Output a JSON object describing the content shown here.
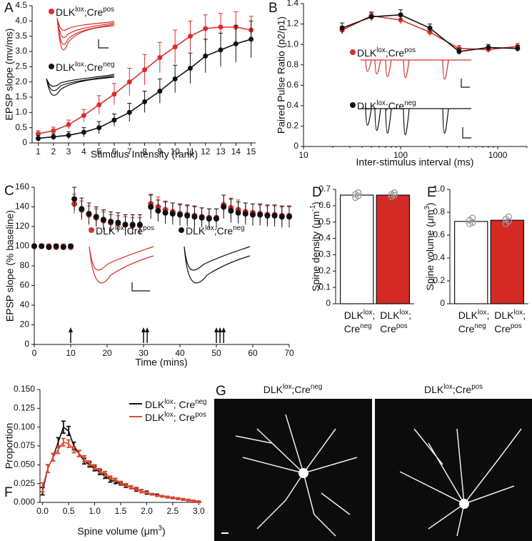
{
  "chart_data": [
    {
      "type": "line",
      "label": "A",
      "ylabel": "EPSP slope (mv/ms)",
      "xlabel": "Stimulus Intensity (rank)",
      "x": [
        1,
        2,
        3,
        4,
        5,
        6,
        7,
        8,
        9,
        10,
        11,
        12,
        13,
        14,
        15
      ],
      "xlim": [
        0.6,
        15.3
      ],
      "xticks": [
        1,
        2,
        3,
        4,
        5,
        6,
        7,
        8,
        9,
        10,
        11,
        12,
        13,
        14,
        15
      ],
      "ylim": [
        0,
        4.5
      ],
      "yticks": [
        0,
        0.5,
        {
          "value": 1,
          "label": "1.0"
        },
        1.5,
        {
          "value": 2,
          "label": "2.0"
        },
        2.5,
        {
          "value": 3,
          "label": "3.0"
        },
        3.5,
        {
          "value": 4,
          "label": "4.0"
        },
        4.5
      ],
      "series": [
        {
          "name": [
            "DLK",
            "lox",
            ";Cre",
            "pos"
          ],
          "color": "#d8302b",
          "values": [
            0.3,
            0.4,
            0.6,
            0.9,
            1.25,
            1.6,
            2.0,
            2.4,
            2.8,
            3.15,
            3.5,
            3.75,
            3.8,
            3.8,
            3.7
          ],
          "errors": [
            0.1,
            0.12,
            0.15,
            0.2,
            0.3,
            0.35,
            0.45,
            0.5,
            0.5,
            0.55,
            0.5,
            0.45,
            0.45,
            0.5,
            0.45
          ]
        },
        {
          "name": [
            "DLK",
            "lox",
            ";Cre",
            "neg"
          ],
          "color": "#111111",
          "values": [
            0.15,
            0.2,
            0.25,
            0.35,
            0.5,
            0.75,
            1.0,
            1.35,
            1.7,
            2.1,
            2.45,
            2.85,
            3.05,
            3.25,
            3.4
          ],
          "errors": [
            0.1,
            0.1,
            0.12,
            0.15,
            0.2,
            0.2,
            0.3,
            0.35,
            0.4,
            0.45,
            0.5,
            0.55,
            0.55,
            0.6,
            0.6
          ]
        }
      ]
    },
    {
      "type": "line",
      "label": "B",
      "ylabel": "Paired Pulse Ratio (p2/p1)",
      "xlabel": "Inter-stimulus interval (ms)",
      "log_x": true,
      "x": [
        25,
        50,
        100,
        200,
        400,
        800,
        1600
      ],
      "xlim": [
        10,
        2000
      ],
      "xticks": [
        10,
        100,
        1000
      ],
      "ylim": [
        0,
        1.4
      ],
      "yticks": [
        0,
        0.2,
        0.4,
        0.6,
        0.8,
        {
          "value": 1,
          "label": "1.0"
        },
        1.2,
        1.4
      ],
      "series": [
        {
          "name": [
            "DLK",
            "lox",
            ";Cre",
            "pos"
          ],
          "color": "#d8302b",
          "values": [
            1.14,
            1.28,
            1.24,
            1.12,
            0.96,
            0.95,
            0.98
          ],
          "errors": [
            0.04,
            0.04,
            0.04,
            0.04,
            0.03,
            0.03,
            0.03
          ]
        },
        {
          "name": [
            "DLK",
            "lox",
            ";Cre",
            "neg"
          ],
          "color": "#111111",
          "values": [
            1.16,
            1.27,
            1.29,
            1.16,
            0.93,
            0.97,
            0.96
          ],
          "errors": [
            0.05,
            0.04,
            0.05,
            0.04,
            0.03,
            0.03,
            0.03
          ]
        }
      ]
    },
    {
      "type": "scatter",
      "label": "C",
      "ylabel": "EPSP slope (% baseline)",
      "xlabel": "Time (mins)",
      "x": [
        0,
        2,
        4,
        6,
        8,
        10,
        11,
        13,
        15,
        17,
        19,
        21,
        23,
        25,
        27,
        29,
        32,
        34,
        36,
        38,
        40,
        42,
        44,
        46,
        48,
        50,
        52,
        54,
        56,
        58,
        60,
        62,
        64,
        66,
        68,
        70
      ],
      "xlim": [
        0,
        70
      ],
      "xticks": [
        0,
        10,
        20,
        30,
        40,
        50,
        60,
        70
      ],
      "ylim": [
        0,
        160
      ],
      "yticks": [
        0,
        20,
        40,
        60,
        80,
        100,
        120,
        140,
        160
      ],
      "stimulus_times": [
        10,
        30,
        31,
        50,
        51,
        52
      ],
      "series": [
        {
          "name": [
            "DLK",
            "lox",
            ";Cre",
            "pos"
          ],
          "color": "#d8302b",
          "values": [
            100,
            100,
            100,
            99,
            100,
            99,
            143,
            137,
            132,
            129,
            126,
            124,
            123,
            122,
            121,
            121,
            143,
            140,
            137,
            135,
            133,
            132,
            131,
            130,
            129,
            129,
            142,
            139,
            137,
            135,
            134,
            133,
            132,
            132,
            131,
            131
          ],
          "errors": [
            2,
            2,
            2,
            2,
            2,
            2,
            10,
            9,
            9,
            9,
            9,
            8,
            8,
            8,
            8,
            8,
            10,
            10,
            9,
            9,
            9,
            9,
            9,
            9,
            9,
            9,
            10,
            10,
            10,
            9,
            9,
            9,
            9,
            9,
            9,
            9
          ]
        },
        {
          "name": [
            "DLK",
            "lox",
            ";Cre",
            "neg"
          ],
          "color": "#111111",
          "values": [
            100,
            100,
            99,
            100,
            99,
            100,
            148,
            138,
            133,
            130,
            127,
            125,
            124,
            122,
            122,
            122,
            140,
            136,
            134,
            133,
            132,
            131,
            130,
            129,
            128,
            128,
            140,
            136,
            134,
            133,
            132,
            132,
            131,
            131,
            130,
            130
          ],
          "errors": [
            2,
            2,
            2,
            2,
            2,
            2,
            12,
            11,
            11,
            10,
            10,
            10,
            10,
            10,
            10,
            10,
            12,
            11,
            11,
            11,
            11,
            11,
            11,
            10,
            10,
            10,
            12,
            12,
            11,
            11,
            11,
            11,
            11,
            11,
            11,
            11
          ]
        }
      ]
    },
    {
      "type": "bar",
      "label": "D",
      "ylabel": [
        "Spine density (μm",
        "-1",
        ")"
      ],
      "categories": [
        [
          [
            "DLK",
            "lox",
            ";"
          ],
          [
            "Cre",
            "neg"
          ]
        ],
        [
          [
            "DLK",
            "lox",
            ";"
          ],
          [
            "Cre",
            "pos"
          ]
        ]
      ],
      "values": [
        0.665,
        0.665
      ],
      "colors": [
        "#ffffff",
        "#d42a25"
      ],
      "points": [
        [
          0.65,
          0.66,
          0.67,
          0.68
        ],
        [
          0.655,
          0.665,
          0.67,
          0.68
        ]
      ],
      "ylim": [
        0,
        0.7
      ],
      "yticks": [
        0,
        0.1,
        0.2,
        0.3,
        0.4,
        0.5,
        0.6,
        0.7
      ]
    },
    {
      "type": "bar",
      "label": "E",
      "ylabel": [
        "Spine volume (μm",
        "3",
        ")"
      ],
      "categories": [
        [
          [
            "DLK",
            "lox",
            ";"
          ],
          [
            "Cre",
            "neg"
          ]
        ],
        [
          [
            "DLK",
            "lox",
            ";"
          ],
          [
            "Cre",
            "pos"
          ]
        ]
      ],
      "values": [
        0.72,
        0.73
      ],
      "colors": [
        "#ffffff",
        "#d42a25"
      ],
      "points": [
        [
          0.7,
          0.71,
          0.73,
          0.75
        ],
        [
          0.7,
          0.72,
          0.74,
          0.76
        ]
      ],
      "ylim": [
        0,
        1
      ],
      "yticks": [
        0,
        0.2,
        0.4,
        0.6,
        0.8,
        {
          "value": 1,
          "label": "1.0"
        }
      ]
    },
    {
      "type": "line",
      "label": "F",
      "ylabel": "Proportion",
      "xlabel": [
        "Spine volume (μm",
        "3",
        ")"
      ],
      "markers": false,
      "x": [
        0,
        0.1,
        0.2,
        0.3,
        0.4,
        0.5,
        0.6,
        0.7,
        0.8,
        0.9,
        1,
        1.1,
        1.2,
        1.3,
        1.4,
        1.5,
        1.6,
        1.7,
        1.8,
        1.9,
        2,
        2.1,
        2.2,
        2.3,
        2.4,
        2.5,
        2.6,
        2.7,
        2.8,
        2.9,
        3
      ],
      "xlim": [
        -0.05,
        3.05
      ],
      "xticks": [
        {
          "value": 0,
          "label": "0.0"
        },
        0.5,
        {
          "value": 1,
          "label": "1.0"
        },
        1.5,
        {
          "value": 2,
          "label": "2.0"
        },
        2.5,
        {
          "value": 3,
          "label": "3.0"
        }
      ],
      "ylim": [
        0,
        0.15
      ],
      "yticks": [
        {
          "value": 0,
          "label": "0.000"
        },
        {
          "value": 0.025,
          "label": "0.025"
        },
        {
          "value": 0.05,
          "label": "0.050"
        },
        {
          "value": 0.075,
          "label": "0.075"
        },
        {
          "value": 0.1,
          "label": "0.100"
        },
        {
          "value": 0.125,
          "label": "0.125"
        },
        {
          "value": 0.15,
          "label": "0.150"
        }
      ],
      "series": [
        {
          "name": [
            "DLK",
            "lox",
            "; Cre",
            "neg"
          ],
          "color": "#111111",
          "values": [
            0.015,
            0.045,
            0.06,
            0.08,
            0.1,
            0.095,
            0.075,
            0.065,
            0.055,
            0.05,
            0.045,
            0.04,
            0.035,
            0.03,
            0.027,
            0.025,
            0.022,
            0.02,
            0.017,
            0.015,
            0.013,
            0.011,
            0.01,
            0.008,
            0.007,
            0.006,
            0.005,
            0.004,
            0.003,
            0.002,
            0.001
          ],
          "errors": [
            0.005,
            0.005,
            0.005,
            0.006,
            0.008,
            0.006,
            0.005,
            0.004,
            0.004,
            0.003,
            0.003,
            0.003,
            0.003,
            0.003,
            0.002,
            0.002,
            0.002,
            0.002,
            0.002,
            0.002,
            0.002,
            0.001,
            0.001,
            0.001,
            0.001,
            0.001,
            0.001,
            0.001,
            0.001,
            0.001,
            0.001
          ]
        },
        {
          "name": [
            "DLK",
            "lox",
            "; Cre",
            "pos"
          ],
          "color": "#e0482c",
          "values": [
            0.02,
            0.045,
            0.06,
            0.07,
            0.08,
            0.078,
            0.07,
            0.065,
            0.058,
            0.052,
            0.047,
            0.042,
            0.038,
            0.033,
            0.03,
            0.026,
            0.023,
            0.02,
            0.018,
            0.015,
            0.013,
            0.011,
            0.009,
            0.008,
            0.007,
            0.006,
            0.005,
            0.004,
            0.003,
            0.002,
            0.001
          ],
          "errors": [
            0.006,
            0.005,
            0.005,
            0.005,
            0.005,
            0.005,
            0.004,
            0.004,
            0.004,
            0.003,
            0.003,
            0.003,
            0.003,
            0.002,
            0.002,
            0.002,
            0.002,
            0.002,
            0.002,
            0.002,
            0.001,
            0.001,
            0.001,
            0.001,
            0.001,
            0.001,
            0.001,
            0.001,
            0.001,
            0.001,
            0.001
          ]
        }
      ]
    }
  ],
  "panel_g": {
    "label": "G",
    "titles": [
      [
        "DLK",
        "lox",
        ";Cre",
        "neg"
      ],
      [
        "DLK",
        "lox",
        ";Cre",
        "pos"
      ]
    ]
  }
}
